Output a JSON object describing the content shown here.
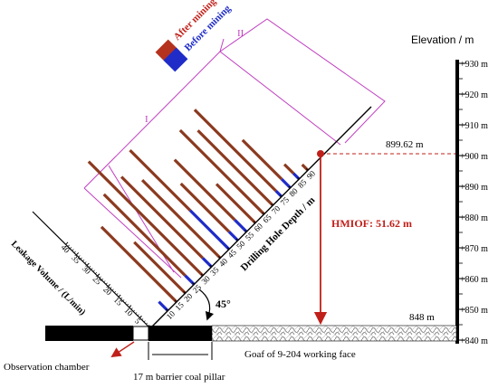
{
  "legend": {
    "after_label": "After mining",
    "before_label": "Before mining",
    "after_color": "#b5321e",
    "before_color": "#1f2cc8"
  },
  "elevation": {
    "title": "Elevation / m",
    "ticks": [
      "+930 m",
      "+920 m",
      "+910 m",
      "+900 m",
      "+890 m",
      "+880 m",
      "+870 m",
      "+860 m",
      "+850 m",
      "+840 m"
    ]
  },
  "depth_axis": {
    "title": "Drilling Hole Depth / m",
    "ticks": [
      "10",
      "15",
      "20",
      "25",
      "30",
      "35",
      "40",
      "45",
      "50",
      "55",
      "60",
      "65",
      "70",
      "75",
      "80",
      "85",
      "90"
    ]
  },
  "leakage_axis": {
    "title": "Leakage Volume / (L/min)",
    "ticks": [
      "5",
      "10",
      "15",
      "20",
      "25",
      "30",
      "35",
      "40"
    ]
  },
  "annotations": {
    "level_899": "899.62 m",
    "level_848": "848 m",
    "hmiof": "HMIOF: 51.62 m",
    "angle": "45°",
    "zone_1": "I",
    "zone_2": "II",
    "goaf": "Goaf of 9-204 working face",
    "pillar": "17 m barrier coal pillar",
    "chamber": "Observation chamber"
  },
  "leakage_data": {
    "after_color": "#8b3a1f",
    "before_color": "#1f2cc8",
    "bars": [
      {
        "depth": 10,
        "after": 0,
        "before": 3
      },
      {
        "depth": 15,
        "after": 25,
        "before": 0
      },
      {
        "depth": 20,
        "after": 17,
        "before": 0
      },
      {
        "depth": 25,
        "after": 27,
        "before": 3
      },
      {
        "depth": 30,
        "after": 38,
        "before": 0
      },
      {
        "depth": 35,
        "after": 27,
        "before": 3
      },
      {
        "depth": 40,
        "after": 26,
        "before": 0
      },
      {
        "depth": 45,
        "after": 20,
        "before": 13
      },
      {
        "depth": 50,
        "after": 16,
        "before": 3
      },
      {
        "depth": 55,
        "after": 20,
        "before": 4
      },
      {
        "depth": 60,
        "after": 13,
        "before": 0
      },
      {
        "depth": 65,
        "after": 28,
        "before": 0
      },
      {
        "depth": 70,
        "after": 25,
        "before": 0
      },
      {
        "depth": 75,
        "after": 27,
        "before": 2
      },
      {
        "depth": 80,
        "after": 13,
        "before": 3
      },
      {
        "depth": 85,
        "after": 3,
        "before": 2
      },
      {
        "depth": 90,
        "after": 2,
        "before": 0
      }
    ]
  }
}
